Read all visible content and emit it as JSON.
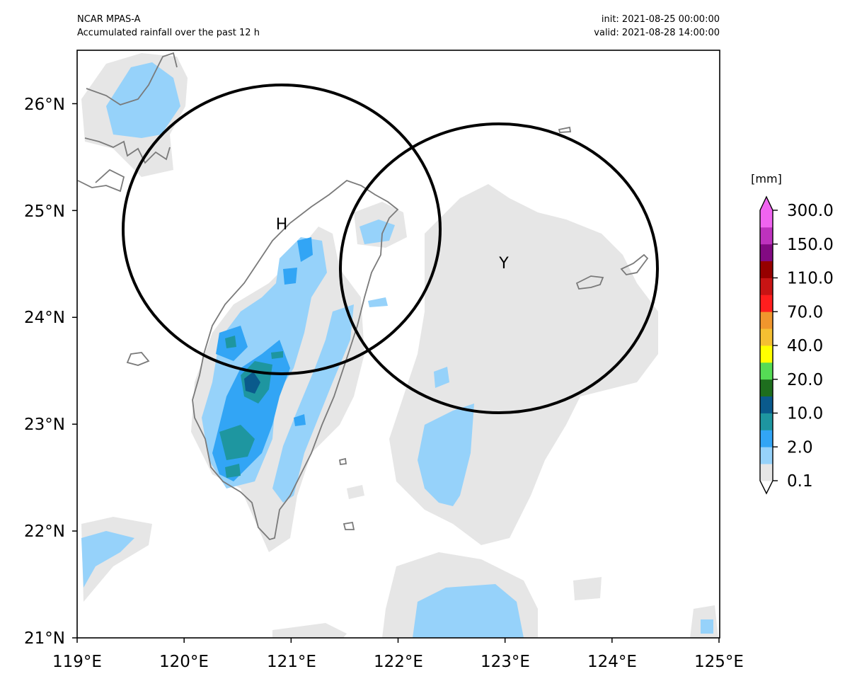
{
  "header": {
    "model": "NCAR MPAS-A",
    "description": "Accumulated rainfall over the past 12 h",
    "init": "init: 2021-08-25 00:00:00",
    "valid": "valid: 2021-08-28 14:00:00"
  },
  "chart_data": {
    "type": "heatmap",
    "title": "Accumulated rainfall over the past 12 h",
    "x_ticks": [
      "119°E",
      "120°E",
      "121°E",
      "122°E",
      "123°E",
      "124°E",
      "125°E"
    ],
    "y_ticks": [
      "21°N",
      "22°N",
      "23°N",
      "24°N",
      "25°N",
      "26°N"
    ],
    "xlim": [
      119,
      125
    ],
    "ylim": [
      21,
      26.5
    ],
    "colorbar": {
      "unit": "[mm]",
      "levels": [
        0.1,
        1,
        2,
        5,
        10,
        15,
        20,
        30,
        40,
        50,
        70,
        90,
        110,
        130,
        150,
        200,
        300
      ],
      "tick_labels": [
        "0.1",
        "2.0",
        "10.0",
        "20.0",
        "40.0",
        "70.0",
        "110.0",
        "150.0",
        "300.0"
      ],
      "colors": [
        "#e6e6e6",
        "#96d2fa",
        "#32a5f5",
        "#1e96a0",
        "#0a5a8c",
        "#1e6e1e",
        "#55dc55",
        "#ffff00",
        "#f5c032",
        "#f0962d",
        "#ff1e1e",
        "#c81414",
        "#960000",
        "#820a82",
        "#be32be",
        "#f064f0"
      ],
      "extend": "both"
    },
    "markers": [
      {
        "label": "H",
        "lon": 120.93,
        "lat": 24.84
      },
      {
        "label": "Y",
        "lon": 122.95,
        "lat": 24.47
      }
    ]
  }
}
